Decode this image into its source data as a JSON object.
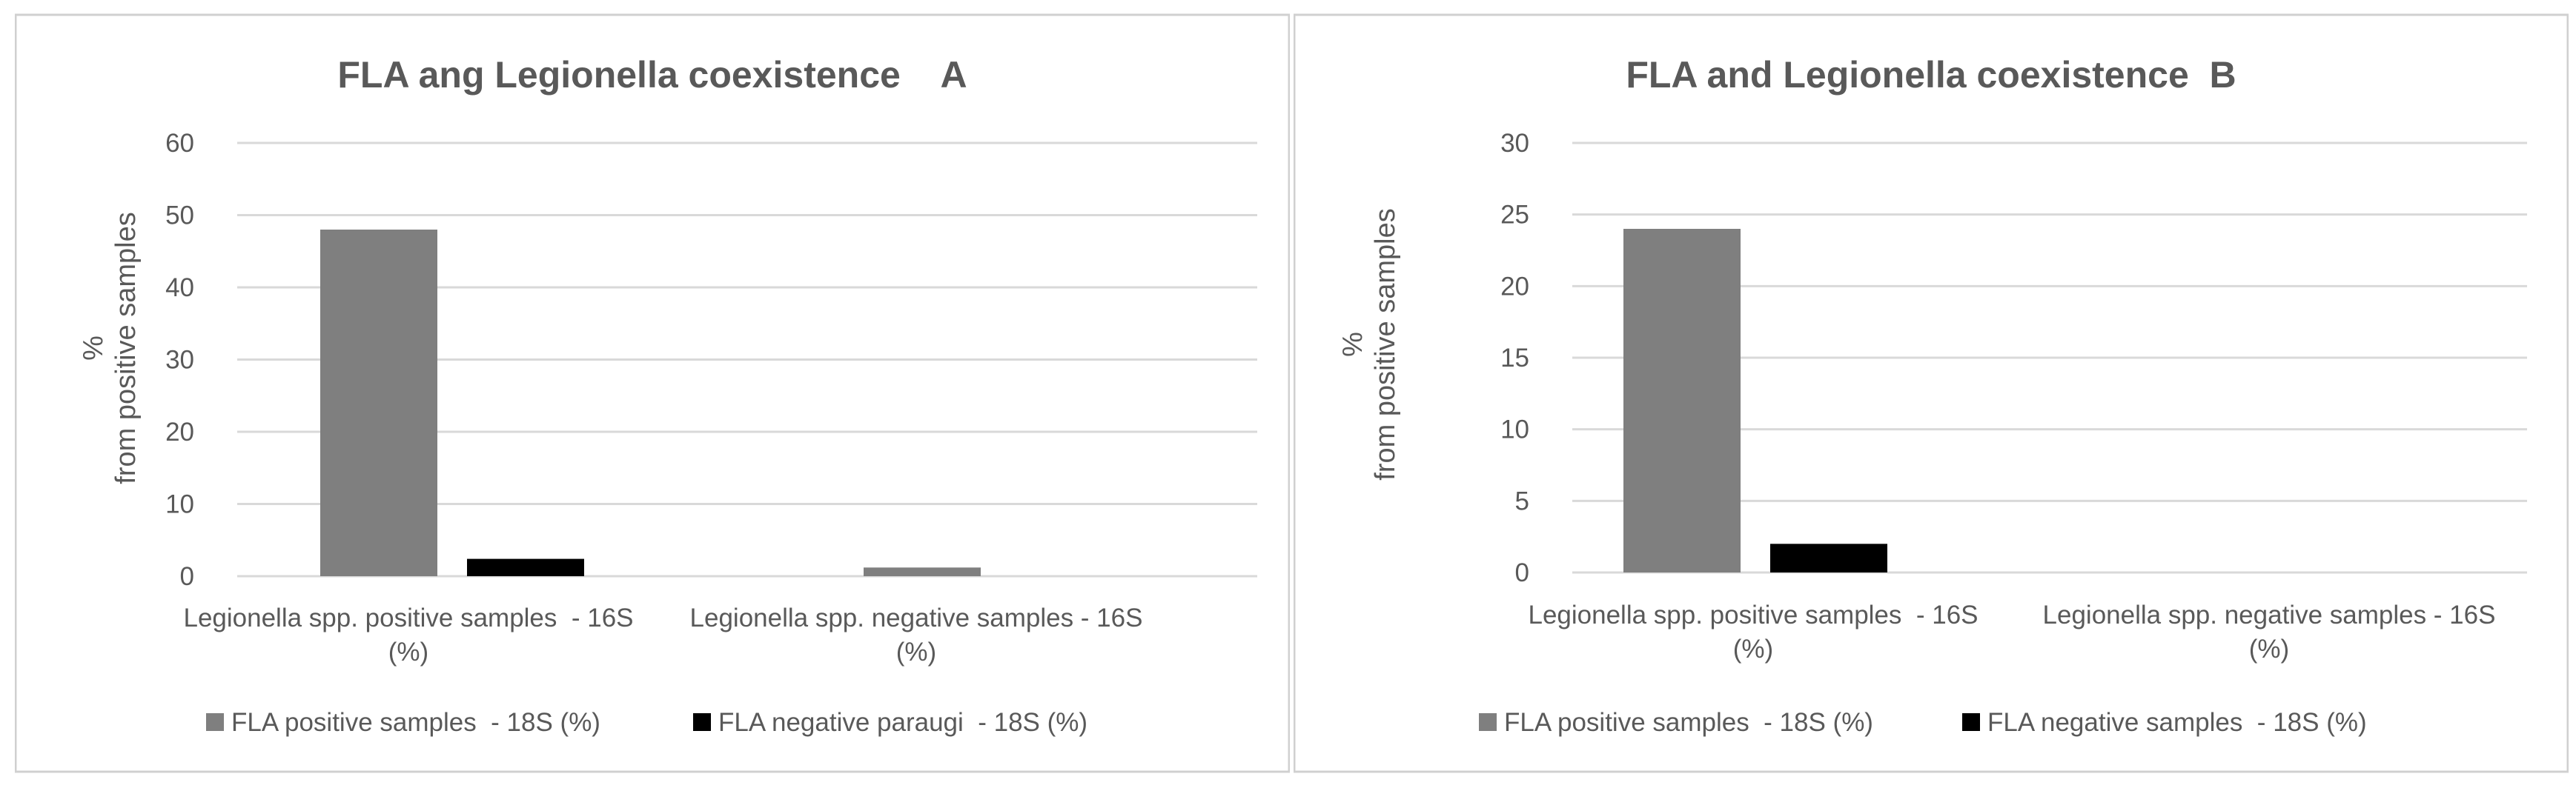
{
  "colors": {
    "series_positive": "#7f7f7f",
    "series_negative": "#000000",
    "gridline": "#d9d9d9",
    "axis_text": "#595959",
    "title_text": "#595959",
    "border": "#d0d0d0"
  },
  "chart_data": [
    {
      "type": "bar",
      "title": "FLA ang Legionella coexistence    A",
      "ylabel_line1": "%",
      "ylabel_line2": "from positive samples",
      "xlabel": "",
      "ylim": [
        0,
        60
      ],
      "yticks": [
        0,
        10,
        20,
        30,
        40,
        50,
        60
      ],
      "ytick_labels": [
        "0",
        "10",
        "20",
        "30",
        "40",
        "50",
        "60"
      ],
      "categories": [
        {
          "line1": "Legionella spp. positive samples  - 16S",
          "line2": "(%)"
        },
        {
          "line1": "Legionella spp. negative samples - 16S",
          "line2": "(%)"
        }
      ],
      "series": [
        {
          "name": "FLA positive samples  - 18S (%)",
          "values": [
            48,
            1.2
          ]
        },
        {
          "name": "FLA negative paraugi  - 18S (%)",
          "values": [
            2.4,
            0
          ]
        }
      ],
      "legend_position": "bottom"
    },
    {
      "type": "bar",
      "title": "FLA and Legionella coexistence  B",
      "ylabel_line1": "%",
      "ylabel_line2": "from positive samples",
      "xlabel": "",
      "ylim": [
        0,
        30
      ],
      "yticks": [
        0,
        5,
        10,
        15,
        20,
        25,
        30
      ],
      "ytick_labels": [
        "0",
        "5",
        "10",
        "15",
        "20",
        "25",
        "30"
      ],
      "categories": [
        {
          "line1": "Legionella spp. positive samples  - 16S",
          "line2": "(%)"
        },
        {
          "line1": "Legionella spp. negative samples - 16S",
          "line2": "(%)"
        }
      ],
      "series": [
        {
          "name": "FLA positive samples  - 18S (%)",
          "values": [
            24,
            0
          ]
        },
        {
          "name": "FLA negative samples  - 18S (%)",
          "values": [
            2,
            0
          ]
        }
      ],
      "legend_position": "bottom"
    }
  ]
}
